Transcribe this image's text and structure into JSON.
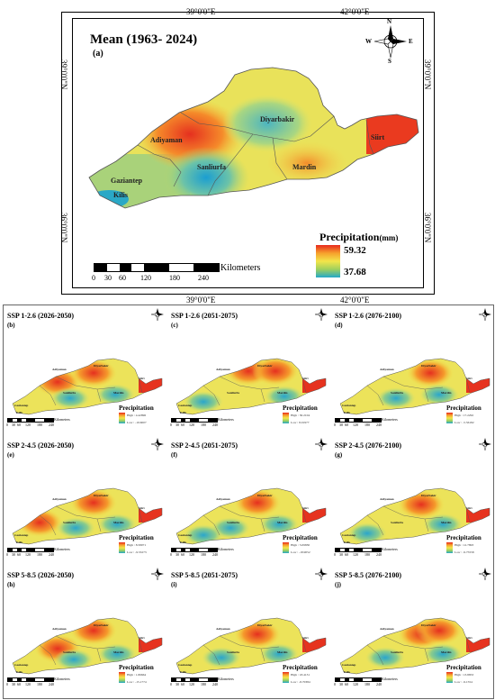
{
  "main": {
    "title": "Mean (1963- 2024)",
    "label": "(a)",
    "coords": {
      "top1": "39°0'0\"E",
      "top2": "42°0'0\"E",
      "bottom1": "39°0'0\"E",
      "bottom2": "42°0'0\"E",
      "left1": "39°0'0\"N",
      "left2": "36°0'0\"N",
      "right1": "39°0'0\"N",
      "right2": "36°0'0\"N"
    },
    "compass": {
      "n": "N",
      "s": "S",
      "e": "E",
      "w": "W"
    },
    "cities": [
      "Diyarbakir",
      "Adiyaman",
      "Siirt",
      "Sanliurfa",
      "Gaziantep",
      "Mardin",
      "Kilis"
    ],
    "legend": {
      "title": "Precipitation",
      "unit": "(mm)",
      "high": "59.32",
      "low": "37.68"
    },
    "scale": {
      "labels": [
        "0",
        "30",
        "60",
        "120",
        "180",
        "240"
      ],
      "unit": "Kilometers"
    }
  },
  "panels": [
    {
      "title": "SSP 1-2.6 (2026-2050)",
      "letter": "(b)",
      "high": "High : 4.42896",
      "low": "Low : -10.6007"
    },
    {
      "title": "SSP 1-2.6 (2051-2075)",
      "letter": "(c)",
      "high": "High : 30.2104",
      "low": "Low : 8.01977"
    },
    {
      "title": "SSP 1-2.6 (2076-2100)",
      "letter": "(d)",
      "high": "High : 17.2292",
      "low": "Low : -5.56182"
    },
    {
      "title": "SSP 2-4.5 (2026-2050)",
      "letter": "(e)",
      "high": "High : 8.58071",
      "low": "Low : -9.53273"
    },
    {
      "title": "SSP 2-4.5 (2051-2075)",
      "letter": "(f)",
      "high": "High : 5.09830",
      "low": "Low : -18.9052"
    },
    {
      "title": "SSP 2-4.5 (2076-2100)",
      "letter": "(g)",
      "high": "High : 12.7893",
      "low": "Low : -9.75558"
    },
    {
      "title": "SSP 5-8.5 (2026-2050)",
      "letter": "(h)",
      "high": "High : 1.86664",
      "low": "Low : -15.1774"
    },
    {
      "title": "SSP 5-8.5 (2051-2075)",
      "letter": "(i)",
      "high": "High : 18.4131",
      "low": "Low : -8.70384"
    },
    {
      "title": "SSP 5-8.5 (2076-2100)",
      "letter": "(j)",
      "high": "High : 13.8853",
      "low": "Low : -9.1554"
    }
  ],
  "panel_common": {
    "legend_title": "Precipitation",
    "scale_labels": [
      "0",
      "30",
      "60",
      "120",
      "180",
      "240"
    ],
    "scale_unit": "Kilometers",
    "cities": [
      "Diyarbakir",
      "Adiyaman",
      "Siirt",
      "Sanliurfa",
      "Gaziantep",
      "Mardin",
      "Kilis"
    ]
  },
  "colors": {
    "high": "#e8291d",
    "mid": "#f3e54a",
    "low": "#22a8c9"
  }
}
